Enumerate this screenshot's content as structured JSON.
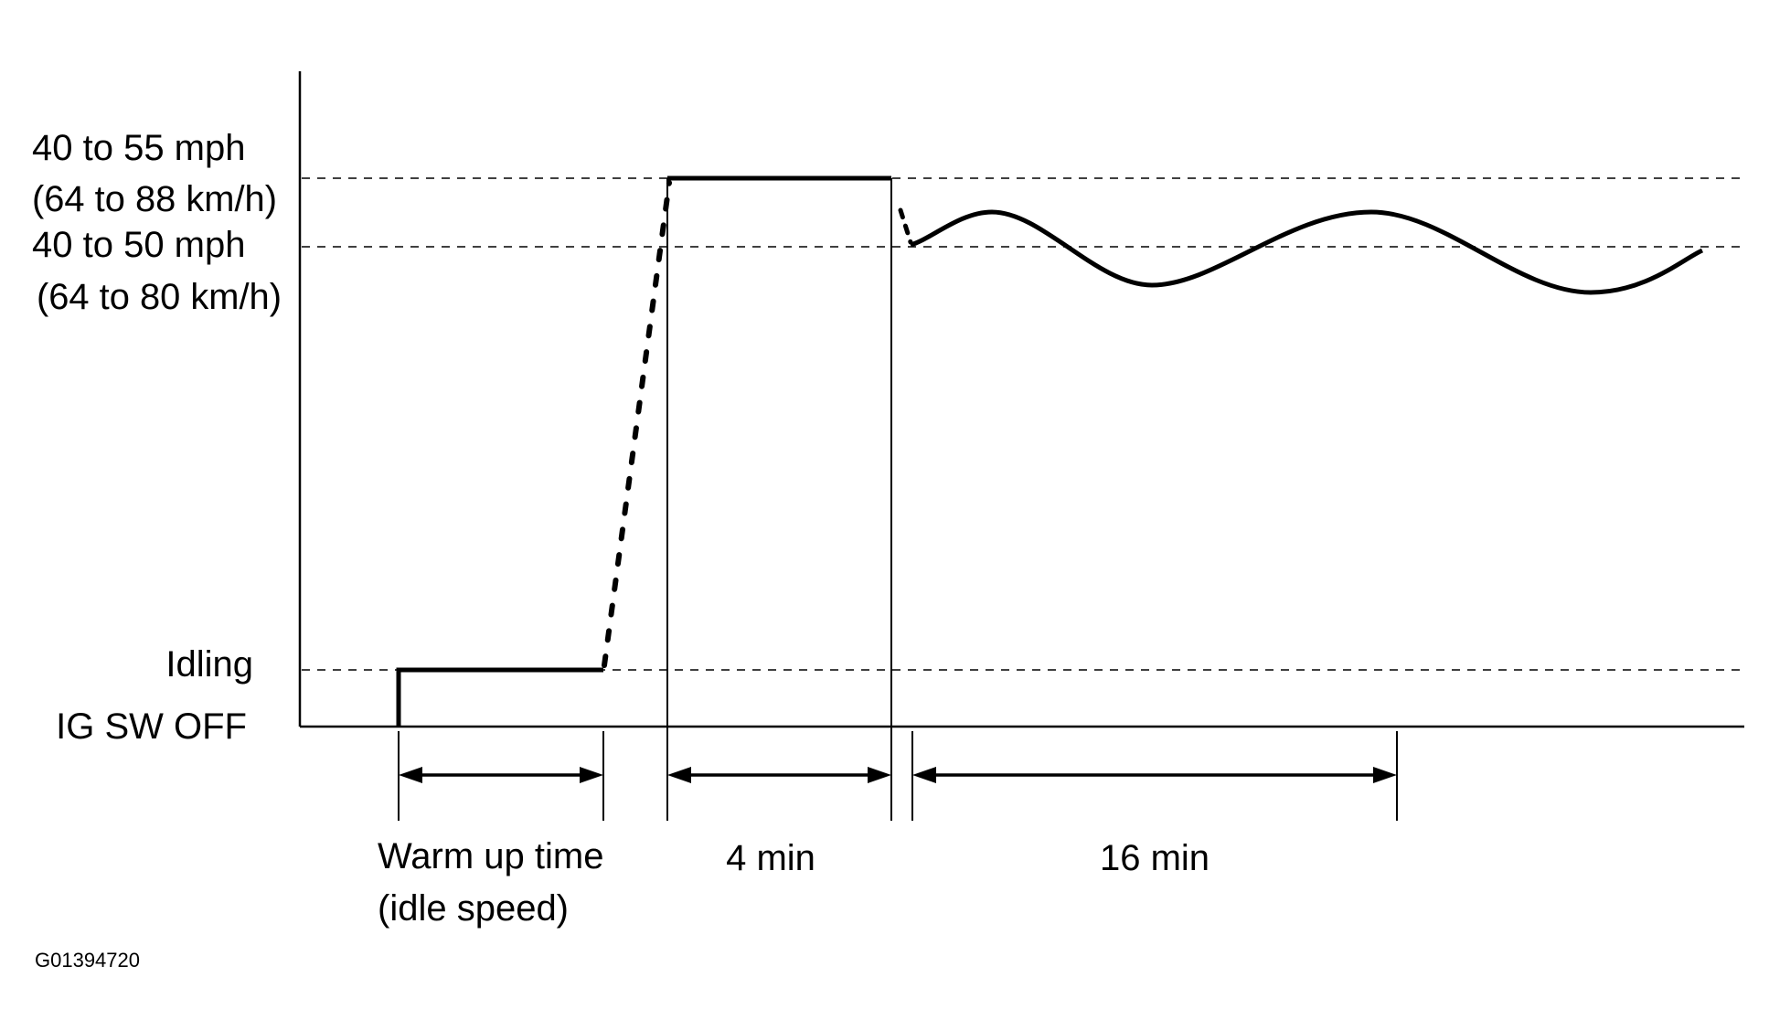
{
  "y_levels": {
    "upper": {
      "line1": "40 to 55 mph",
      "line2": "(64 to 88 km/h)"
    },
    "lower": {
      "line1": "40 to 50 mph",
      "line2": "(64 to 80 km/h)"
    },
    "idling": "Idling",
    "off": "IG SW OFF"
  },
  "intervals": {
    "warm_up": {
      "line1": "Warm up time",
      "line2": "(idle speed)"
    },
    "constant": "4 min",
    "varying": "16 min"
  },
  "figure_code": "G01394720"
}
